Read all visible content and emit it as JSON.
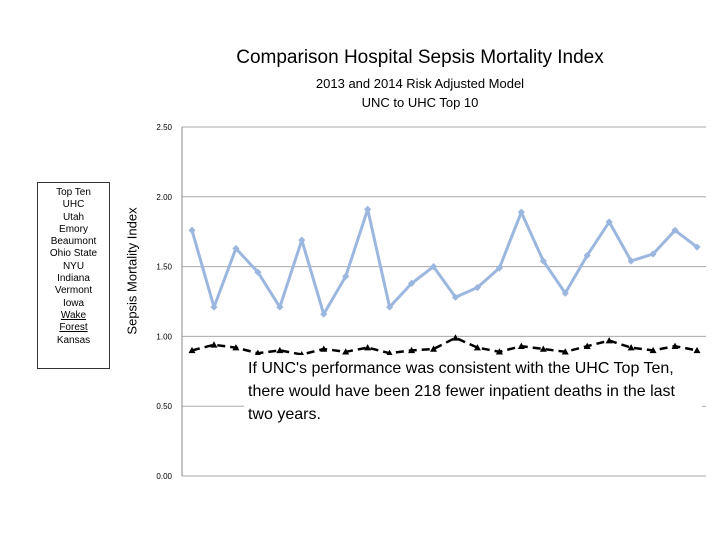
{
  "chart_data": {
    "type": "line",
    "title": "Comparison Hospital Sepsis Mortality Index",
    "subtitle_lines": [
      "2013 and 2014 Risk Adjusted Model",
      "UNC to UHC Top 10"
    ],
    "ylabel": "Sepsis Mortality Index",
    "xlabel": "",
    "ylim": [
      0,
      2.5
    ],
    "yticks": [
      "0.00",
      "0.50",
      "1.00",
      "1.50",
      "2.00",
      "2.50"
    ],
    "series": [
      {
        "name": "UNC",
        "color": "#9cb7df",
        "values": [
          1.76,
          1.21,
          1.63,
          1.46,
          1.21,
          1.69,
          1.16,
          1.43,
          1.91,
          1.21,
          1.38,
          1.5,
          1.28,
          1.35,
          1.49,
          1.89,
          1.54,
          1.31,
          1.58,
          1.82,
          1.54,
          1.59,
          1.76,
          1.64
        ]
      },
      {
        "name": "UHC Top Ten",
        "color": "#000000",
        "values": [
          0.9,
          0.94,
          0.92,
          0.88,
          0.9,
          0.87,
          0.91,
          0.89,
          0.92,
          0.88,
          0.9,
          0.91,
          0.99,
          0.92,
          0.89,
          0.93,
          0.91,
          0.89,
          0.93,
          0.97,
          0.92,
          0.9,
          0.93,
          0.9
        ]
      }
    ],
    "legend_title": "Top Ten",
    "legend_items": [
      "UHC",
      "Utah",
      "Emory",
      "Beaumont",
      "Ohio State",
      "NYU",
      "Indiana",
      "Vermont",
      "Iowa",
      "Wake",
      "Forest",
      "Kansas"
    ],
    "annotation": "If UNC's performance was consistent with the UHC Top Ten, there would have been 218 fewer inpatient deaths in the last two years."
  }
}
